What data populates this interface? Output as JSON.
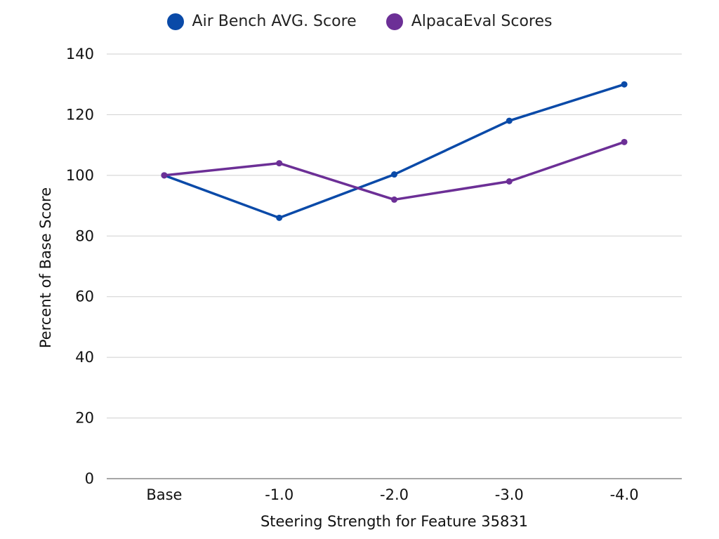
{
  "chart_data": {
    "type": "line",
    "categories": [
      "Base",
      "-1.0",
      "-2.0",
      "-3.0",
      "-4.0"
    ],
    "series": [
      {
        "name": "Air Bench AVG. Score",
        "color": "#0a4aa8",
        "values": [
          100,
          86,
          100.3,
          118,
          130
        ]
      },
      {
        "name": "AlpacaEval Scores",
        "color": "#6c2f96",
        "values": [
          100,
          104,
          92,
          98,
          111
        ]
      }
    ],
    "xlabel": "Steering Strength for Feature 35831",
    "ylabel": "Percent of Base Score",
    "ylim": [
      0,
      140
    ],
    "yticks": [
      0,
      20,
      40,
      60,
      80,
      100,
      120,
      140
    ],
    "grid": true,
    "legend_position": "top-center"
  }
}
